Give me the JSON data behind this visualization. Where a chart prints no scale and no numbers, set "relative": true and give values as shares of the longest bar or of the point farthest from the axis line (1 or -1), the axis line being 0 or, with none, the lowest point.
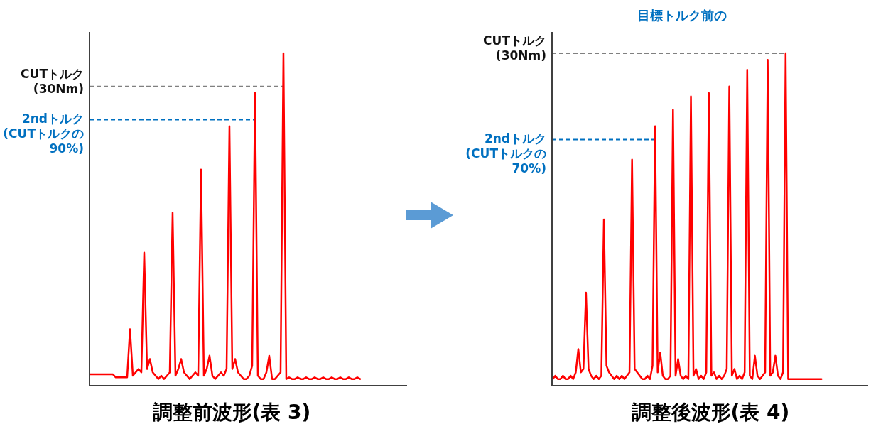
{
  "chart_data": [
    {
      "type": "line",
      "title": "調整前波形(表 3)",
      "relative": true,
      "categories": [
        null,
        null,
        null,
        null,
        null,
        null,
        null,
        null,
        null,
        null,
        null,
        null,
        null,
        null,
        null,
        null,
        null,
        null,
        null,
        null,
        null,
        null,
        null,
        null,
        null,
        null,
        null,
        null,
        null,
        null,
        null,
        null,
        null,
        null,
        null,
        null,
        null,
        null,
        null,
        null,
        null,
        null,
        null,
        null,
        null,
        null,
        null,
        null,
        null,
        null,
        null,
        null,
        null,
        null,
        null,
        null,
        null,
        null,
        null,
        null,
        null,
        null,
        null,
        null,
        null,
        null,
        null,
        null,
        null,
        null,
        null,
        null,
        null,
        null,
        null,
        null,
        null,
        null,
        null,
        null,
        null,
        null,
        null,
        null,
        null,
        null,
        null,
        null,
        null,
        null,
        null,
        null,
        null,
        null,
        null,
        null
      ],
      "series": [
        {
          "color": "#ff0000",
          "values": [
            0.034,
            0.034,
            0.034,
            0.034,
            0.034,
            0.034,
            0.034,
            0.034,
            0.034,
            0.025,
            0.025,
            0.025,
            0.025,
            0.025,
            0.17,
            0.03,
            0.04,
            0.05,
            0.04,
            0.4,
            0.05,
            0.08,
            0.04,
            0.03,
            0.02,
            0.03,
            0.02,
            0.03,
            0.04,
            0.52,
            0.03,
            0.05,
            0.08,
            0.04,
            0.03,
            0.02,
            0.03,
            0.04,
            0.03,
            0.65,
            0.03,
            0.05,
            0.09,
            0.03,
            0.02,
            0.03,
            0.04,
            0.03,
            0.05,
            0.78,
            0.05,
            0.08,
            0.04,
            0.03,
            0.02,
            0.02,
            0.03,
            0.06,
            0.88,
            0.03,
            0.02,
            0.02,
            0.04,
            0.09,
            0.02,
            0.02,
            0.03,
            0.04,
            1.0,
            0.02,
            0.025,
            0.02,
            0.02,
            0.025,
            0.02,
            0.02,
            0.025,
            0.02,
            0.02,
            0.025,
            0.02,
            0.02,
            0.025,
            0.02,
            0.02,
            0.025,
            0.02,
            0.02,
            0.025,
            0.02,
            0.02,
            0.025,
            0.02,
            0.02,
            0.025,
            0.02
          ]
        }
      ],
      "ref_lines": [
        {
          "axis": "y",
          "value": 0.9,
          "label": "CUTトルク\n(30Nm)",
          "color": "#808080",
          "line_style": "dashed"
        },
        {
          "axis": "y",
          "value": 0.8,
          "label": "2ndトルク\n(CUTトルクの90%)",
          "color": "#0070c0",
          "line_style": "dashed"
        }
      ]
    },
    {
      "type": "line",
      "title": "調整後波形(表 4)",
      "relative": true,
      "categories": [
        null,
        null,
        null,
        null,
        null,
        null,
        null,
        null,
        null,
        null,
        null,
        null,
        null,
        null,
        null,
        null,
        null,
        null,
        null,
        null,
        null,
        null,
        null,
        null,
        null,
        null,
        null,
        null,
        null,
        null,
        null,
        null,
        null,
        null,
        null,
        null,
        null,
        null,
        null,
        null,
        null,
        null,
        null,
        null,
        null,
        null,
        null,
        null,
        null,
        null,
        null,
        null,
        null,
        null,
        null,
        null,
        null,
        null,
        null,
        null,
        null,
        null,
        null,
        null,
        null,
        null,
        null,
        null,
        null,
        null,
        null,
        null,
        null,
        null,
        null,
        null,
        null,
        null,
        null,
        null,
        null,
        null,
        null,
        null,
        null,
        null,
        null,
        null,
        null,
        null,
        null,
        null,
        null,
        null,
        null,
        null,
        null,
        null,
        null,
        null,
        null,
        null,
        null,
        null,
        null,
        null
      ],
      "series": [
        {
          "color": "#ff0000",
          "values": [
            0.02,
            0.03,
            0.02,
            0.02,
            0.03,
            0.02,
            0.02,
            0.03,
            0.02,
            0.04,
            0.11,
            0.04,
            0.05,
            0.28,
            0.05,
            0.03,
            0.02,
            0.03,
            0.02,
            0.03,
            0.5,
            0.06,
            0.04,
            0.03,
            0.02,
            0.03,
            0.02,
            0.03,
            0.02,
            0.03,
            0.04,
            0.68,
            0.05,
            0.04,
            0.03,
            0.02,
            0.02,
            0.03,
            0.02,
            0.06,
            0.78,
            0.04,
            0.1,
            0.03,
            0.02,
            0.02,
            0.03,
            0.83,
            0.03,
            0.08,
            0.03,
            0.02,
            0.03,
            0.02,
            0.87,
            0.03,
            0.05,
            0.02,
            0.03,
            0.02,
            0.04,
            0.88,
            0.03,
            0.04,
            0.02,
            0.03,
            0.02,
            0.03,
            0.05,
            0.9,
            0.03,
            0.05,
            0.02,
            0.03,
            0.02,
            0.04,
            0.95,
            0.03,
            0.02,
            0.09,
            0.03,
            0.02,
            0.03,
            0.04,
            0.98,
            0.03,
            0.04,
            0.09,
            0.03,
            0.02,
            0.04,
            1.0,
            0.02,
            0.02,
            0.02,
            0.02,
            0.02,
            0.02,
            0.02,
            0.02,
            0.02,
            0.02,
            0.02,
            0.02,
            0.02,
            0.02
          ]
        }
      ],
      "ref_lines": [
        {
          "axis": "y",
          "value": 1.0,
          "label": "CUTトルク\n(30Nm)",
          "color": "#808080",
          "line_style": "dashed"
        },
        {
          "axis": "y",
          "value": 0.74,
          "label": "2ndトルク\n(CUTトルクの70%)",
          "color": "#0070c0",
          "line_style": "dashed"
        }
      ],
      "annotations": [
        "目標トルク前の"
      ]
    }
  ]
}
